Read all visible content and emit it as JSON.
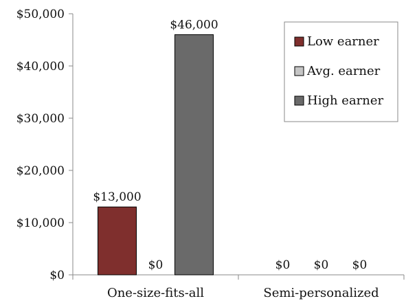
{
  "chart_data": {
    "type": "bar",
    "categories": [
      "One-size-fits-all",
      "Semi-personalized"
    ],
    "series": [
      {
        "name": "Low earner",
        "values": [
          13000,
          0
        ],
        "labels": [
          "$13,000",
          "$0"
        ],
        "color": "#7f2f2d"
      },
      {
        "name": "Avg. earner",
        "values": [
          0,
          0
        ],
        "labels": [
          "$0",
          "$0"
        ],
        "color": "#c5c5c5"
      },
      {
        "name": "High earner",
        "values": [
          46000,
          0
        ],
        "labels": [
          "$46,000",
          "$0"
        ],
        "color": "#6a6a6a"
      }
    ],
    "ylim": [
      0,
      50000
    ],
    "yticks": [
      0,
      10000,
      20000,
      30000,
      40000,
      50000
    ],
    "ytick_labels": [
      "$0",
      "$10,000",
      "$20,000",
      "$30,000",
      "$40,000",
      "$50,000"
    ],
    "title": "",
    "xlabel": "",
    "ylabel": "",
    "grid": false,
    "legend": "top-right"
  }
}
